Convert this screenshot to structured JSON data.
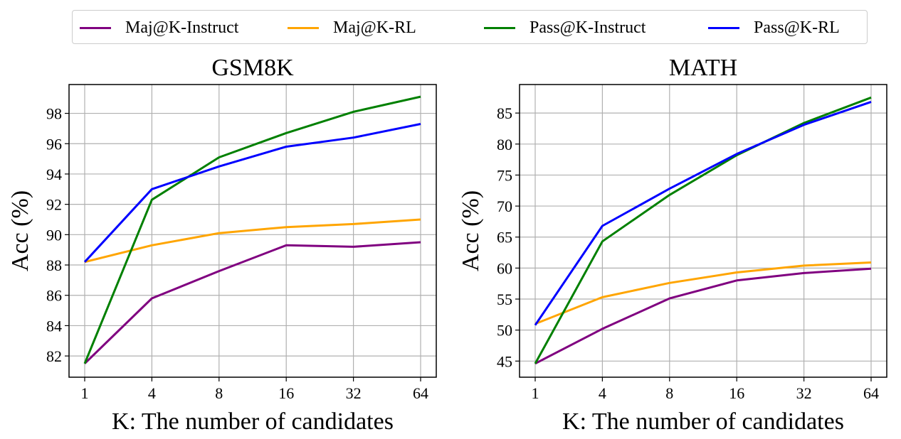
{
  "legend": {
    "entries": [
      {
        "label": "Maj@K-Instruct",
        "color": "#800080"
      },
      {
        "label": "Maj@K-RL",
        "color": "#FFA500"
      },
      {
        "label": "Pass@K-Instruct",
        "color": "#008000"
      },
      {
        "label": "Pass@K-RL",
        "color": "#0000FF"
      }
    ]
  },
  "chart_data": [
    {
      "type": "line",
      "title": "GSM8K",
      "xlabel": "K: The number of candidates",
      "ylabel": "Acc (%)",
      "x": [
        "1",
        "4",
        "8",
        "16",
        "32",
        "64"
      ],
      "ylim": [
        80.6,
        99.9
      ],
      "yticks": [
        "82",
        "84",
        "86",
        "88",
        "90",
        "92",
        "94",
        "96",
        "98"
      ],
      "grid": true,
      "series": [
        {
          "name": "Maj@K-Instruct",
          "color": "#800080",
          "values": [
            81.5,
            85.8,
            87.6,
            89.3,
            89.2,
            89.5
          ]
        },
        {
          "name": "Maj@K-RL",
          "color": "#FFA500",
          "values": [
            88.2,
            89.3,
            90.1,
            90.5,
            90.7,
            91.0
          ]
        },
        {
          "name": "Pass@K-Instruct",
          "color": "#008000",
          "values": [
            81.5,
            92.3,
            95.1,
            96.7,
            98.1,
            99.1
          ]
        },
        {
          "name": "Pass@K-RL",
          "color": "#0000FF",
          "values": [
            88.2,
            93.0,
            94.5,
            95.8,
            96.4,
            97.3
          ]
        }
      ]
    },
    {
      "type": "line",
      "title": "MATH",
      "xlabel": "K: The number of candidates",
      "ylabel": "Acc (%)",
      "x": [
        "1",
        "4",
        "8",
        "16",
        "32",
        "64"
      ],
      "ylim": [
        42.4,
        89.6
      ],
      "yticks": [
        "45",
        "50",
        "55",
        "60",
        "65",
        "70",
        "75",
        "80",
        "85"
      ],
      "grid": true,
      "series": [
        {
          "name": "Maj@K-Instruct",
          "color": "#800080",
          "values": [
            44.6,
            50.2,
            55.1,
            58.0,
            59.2,
            59.9
          ]
        },
        {
          "name": "Maj@K-RL",
          "color": "#FFA500",
          "values": [
            51.0,
            55.3,
            57.6,
            59.3,
            60.4,
            60.9
          ]
        },
        {
          "name": "Pass@K-Instruct",
          "color": "#008000",
          "values": [
            44.6,
            64.3,
            71.8,
            78.2,
            83.4,
            87.5
          ]
        },
        {
          "name": "Pass@K-RL",
          "color": "#0000FF",
          "values": [
            50.8,
            66.8,
            72.8,
            78.4,
            83.1,
            86.8
          ]
        }
      ]
    }
  ]
}
